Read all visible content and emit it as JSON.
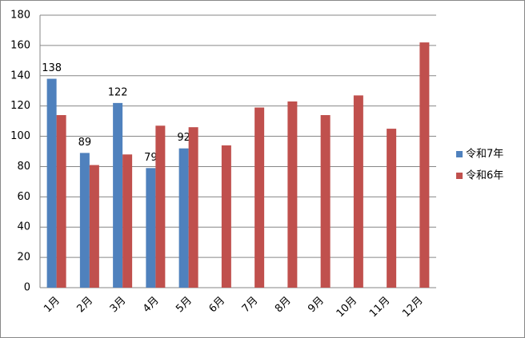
{
  "chart_data": {
    "type": "bar",
    "categories": [
      "1月",
      "2月",
      "3月",
      "4月",
      "5月",
      "6月",
      "7月",
      "8月",
      "9月",
      "10月",
      "11月",
      "12月"
    ],
    "series": [
      {
        "name": "令和7年",
        "color": "#4f81bd",
        "values": [
          138,
          89,
          122,
          79,
          92,
          null,
          null,
          null,
          null,
          null,
          null,
          null
        ],
        "data_labels": true
      },
      {
        "name": "令和6年",
        "color": "#c0504d",
        "values": [
          114,
          81,
          88,
          107,
          106,
          94,
          119,
          123,
          114,
          127,
          105,
          162
        ],
        "data_labels": false
      }
    ],
    "ylim": [
      0,
      180
    ],
    "yticks": [
      0,
      20,
      40,
      60,
      80,
      100,
      120,
      140,
      160,
      180
    ],
    "grid": true,
    "legend": "right"
  }
}
